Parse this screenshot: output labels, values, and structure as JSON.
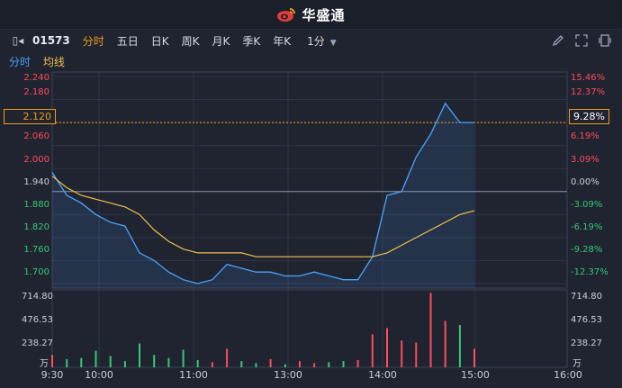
{
  "brand": {
    "name": "华盛通",
    "logo": "weibo-style-logo-icon",
    "accent": "#e23c3c"
  },
  "toolbar": {
    "code": "01573",
    "timeframes": [
      "分时",
      "五日",
      "日K",
      "周K",
      "月K",
      "季K",
      "年K"
    ],
    "active": "分时",
    "minute": "1分",
    "icons": [
      "pencil-icon",
      "expand-icon",
      "fullscreen-icon"
    ]
  },
  "legend": {
    "time_line": "分时",
    "avg_line": "均线"
  },
  "axes": {
    "price_left": [
      "2.240",
      "2.180",
      "2.120",
      "2.060",
      "2.000",
      "1.940",
      "1.880",
      "1.820",
      "1.760",
      "1.700"
    ],
    "pct_right": [
      "15.46%",
      "12.37%",
      "9.28%",
      "6.19%",
      "3.09%",
      "0.00%",
      "-3.09%",
      "-6.19%",
      "-9.28%",
      "-12.37%"
    ],
    "volume_left": [
      "714.80",
      "476.53",
      "238.27",
      "万"
    ],
    "volume_right": [
      "714.80",
      "476.53",
      "238.27",
      "万"
    ],
    "time": [
      "9:30",
      "10:00",
      "11:00",
      "13:00",
      "14:00",
      "15:00",
      "16:00"
    ]
  },
  "current": {
    "price": "2.120",
    "pct": "9.28%"
  },
  "colors": {
    "up": "#ff4b5a",
    "down": "#38c776",
    "price_line": "#4aa3ff",
    "avg_line": "#f2c14e",
    "grid": "#2d3545"
  },
  "chart_data": {
    "type": "line",
    "title": "",
    "xlabel": "",
    "ylabel": "",
    "previous_close": 1.94,
    "ylim": [
      1.7,
      2.24
    ],
    "x": [
      "9:30",
      "9:35",
      "9:40",
      "9:45",
      "9:50",
      "10:00",
      "10:10",
      "10:20",
      "10:30",
      "10:40",
      "10:50",
      "11:00",
      "11:10",
      "11:20",
      "11:30",
      "13:00",
      "13:10",
      "13:20",
      "13:30",
      "13:40",
      "13:50",
      "14:00",
      "14:10",
      "14:20",
      "14:30",
      "14:40",
      "14:45",
      "14:50",
      "14:55",
      "15:00"
    ],
    "series": [
      {
        "name": "分时",
        "values": [
          1.99,
          1.93,
          1.91,
          1.88,
          1.86,
          1.85,
          1.78,
          1.76,
          1.73,
          1.71,
          1.7,
          1.71,
          1.75,
          1.74,
          1.73,
          1.73,
          1.72,
          1.72,
          1.73,
          1.72,
          1.71,
          1.71,
          1.77,
          1.93,
          1.94,
          2.03,
          2.09,
          2.17,
          2.12,
          2.12
        ]
      },
      {
        "name": "均线",
        "values": [
          1.98,
          1.95,
          1.93,
          1.92,
          1.91,
          1.9,
          1.88,
          1.84,
          1.81,
          1.79,
          1.78,
          1.78,
          1.78,
          1.78,
          1.77,
          1.77,
          1.77,
          1.77,
          1.77,
          1.77,
          1.77,
          1.77,
          1.77,
          1.78,
          1.8,
          1.82,
          1.84,
          1.86,
          1.88,
          1.89
        ]
      }
    ],
    "volume_ylim": [
      0,
      714.8
    ],
    "volume_unit": "万",
    "volume": [
      120,
      80,
      90,
      160,
      110,
      60,
      230,
      120,
      90,
      170,
      70,
      50,
      180,
      60,
      40,
      80,
      30,
      60,
      40,
      50,
      60,
      70,
      320,
      380,
      260,
      240,
      720,
      450,
      410,
      180
    ]
  }
}
